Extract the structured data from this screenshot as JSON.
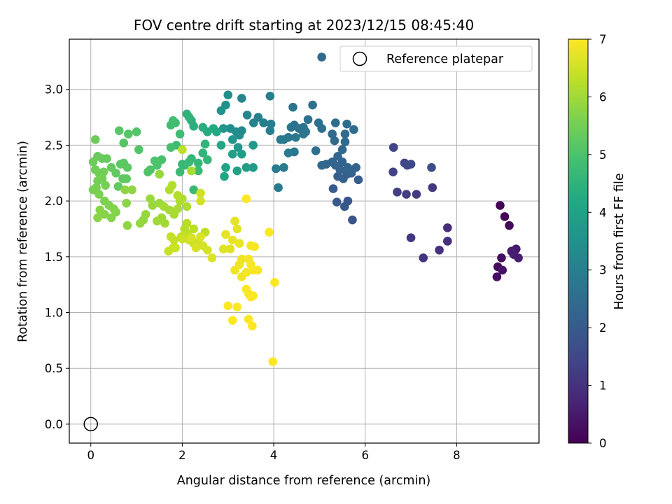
{
  "chart_data": {
    "type": "scatter",
    "title": "FOV centre drift starting at 2023/12/15 08:45:40",
    "xlabel": "Angular distance from reference (arcmin)",
    "ylabel": "Rotation from reference (arcmin)",
    "xlim": [
      -0.47,
      9.8
    ],
    "ylim": [
      -0.17,
      3.45
    ],
    "grid": true,
    "x_ticks": [
      0,
      2,
      4,
      6,
      8
    ],
    "y_ticks": [
      0.0,
      0.5,
      1.0,
      1.5,
      2.0,
      2.5,
      3.0
    ],
    "x_tick_labels": [
      "0",
      "2",
      "4",
      "6",
      "8"
    ],
    "y_tick_labels": [
      "0.0",
      "0.5",
      "1.0",
      "1.5",
      "2.0",
      "2.5",
      "3.0"
    ],
    "legend": {
      "placement": "top-right",
      "entries": [
        "Reference platepar"
      ]
    },
    "reference_point": {
      "x": 0,
      "y": 0,
      "label": "Reference platepar"
    },
    "colorbar": {
      "label": "Hours from first FF file",
      "colormap": "viridis",
      "range": [
        0,
        7
      ],
      "ticks": [
        0,
        1,
        2,
        3,
        4,
        5,
        6,
        7
      ],
      "tick_labels": [
        "0",
        "1",
        "2",
        "3",
        "4",
        "5",
        "6",
        "7"
      ]
    },
    "points": [
      [
        8.95,
        1.96,
        0.05
      ],
      [
        9.05,
        1.86,
        0.1
      ],
      [
        9.15,
        1.78,
        0.15
      ],
      [
        8.9,
        1.41,
        0.2
      ],
      [
        8.98,
        1.49,
        0.25
      ],
      [
        8.88,
        1.32,
        0.3
      ],
      [
        9.0,
        1.38,
        0.35
      ],
      [
        9.2,
        1.55,
        0.4
      ],
      [
        9.3,
        1.57,
        0.45
      ],
      [
        9.25,
        1.52,
        0.5
      ],
      [
        9.35,
        1.49,
        0.55
      ],
      [
        9.22,
        1.54,
        0.6
      ],
      [
        7.8,
        1.76,
        0.9
      ],
      [
        7.8,
        1.64,
        0.95
      ],
      [
        7.62,
        1.56,
        1.0
      ],
      [
        7.27,
        1.49,
        1.05
      ],
      [
        7.0,
        1.67,
        1.1
      ],
      [
        7.47,
        2.12,
        1.15
      ],
      [
        7.12,
        2.06,
        1.2
      ],
      [
        6.9,
        2.06,
        1.25
      ],
      [
        6.7,
        2.08,
        1.3
      ],
      [
        6.61,
        2.26,
        1.35
      ],
      [
        6.62,
        2.48,
        1.4
      ],
      [
        6.86,
        2.34,
        1.45
      ],
      [
        6.92,
        2.32,
        1.5
      ],
      [
        7.0,
        2.33,
        1.55
      ],
      [
        7.45,
        2.3,
        1.6
      ],
      [
        5.72,
        1.83,
        1.8
      ],
      [
        5.62,
        2.0,
        1.85
      ],
      [
        5.55,
        1.95,
        1.9
      ],
      [
        5.38,
        1.99,
        1.95
      ],
      [
        5.3,
        2.11,
        2.0
      ],
      [
        5.85,
        2.19,
        2.05
      ],
      [
        5.52,
        2.2,
        2.1
      ],
      [
        5.4,
        2.22,
        2.12
      ],
      [
        5.6,
        2.24,
        2.14
      ],
      [
        5.45,
        2.28,
        2.16
      ],
      [
        5.7,
        2.25,
        2.18
      ],
      [
        5.8,
        2.3,
        2.2
      ],
      [
        5.5,
        2.35,
        2.22
      ],
      [
        5.35,
        2.32,
        2.24
      ],
      [
        5.62,
        2.3,
        2.26
      ],
      [
        5.28,
        2.35,
        2.28
      ],
      [
        5.4,
        2.4,
        2.3
      ],
      [
        5.15,
        2.33,
        2.32
      ],
      [
        5.05,
        2.32,
        2.34
      ],
      [
        5.5,
        2.46,
        2.36
      ],
      [
        5.33,
        2.54,
        2.38
      ],
      [
        5.56,
        2.53,
        2.4
      ],
      [
        5.28,
        2.6,
        2.42
      ],
      [
        5.56,
        2.6,
        2.44
      ],
      [
        5.75,
        2.64,
        2.46
      ],
      [
        5.6,
        2.69,
        2.48
      ],
      [
        5.35,
        2.7,
        2.5
      ],
      [
        5.05,
        2.65,
        2.52
      ],
      [
        4.98,
        2.7,
        2.54
      ],
      [
        4.92,
        2.45,
        2.56
      ],
      [
        4.85,
        2.86,
        2.58
      ],
      [
        4.75,
        2.73,
        2.6
      ],
      [
        4.65,
        2.66,
        2.62
      ],
      [
        4.55,
        2.65,
        2.64
      ],
      [
        4.45,
        2.68,
        2.66
      ],
      [
        4.38,
        2.66,
        2.68
      ],
      [
        4.42,
        2.84,
        2.7
      ],
      [
        4.7,
        2.62,
        2.72
      ],
      [
        4.65,
        2.6,
        2.74
      ],
      [
        4.48,
        2.57,
        2.76
      ],
      [
        4.32,
        2.57,
        2.78
      ],
      [
        4.22,
        2.55,
        2.8
      ],
      [
        4.15,
        2.55,
        2.82
      ],
      [
        4.45,
        2.44,
        2.84
      ],
      [
        4.32,
        2.43,
        2.86
      ],
      [
        4.22,
        2.3,
        2.88
      ],
      [
        4.05,
        2.29,
        2.9
      ],
      [
        4.1,
        2.12,
        2.92
      ],
      [
        3.92,
        2.63,
        2.94
      ],
      [
        3.94,
        2.69,
        2.96
      ],
      [
        3.92,
        2.94,
        2.98
      ],
      [
        3.78,
        2.7,
        3.0
      ],
      [
        3.66,
        2.75,
        3.05
      ],
      [
        3.56,
        2.7,
        3.1
      ],
      [
        3.42,
        2.77,
        3.15
      ],
      [
        3.3,
        2.92,
        3.2
      ],
      [
        3.3,
        2.63,
        3.25
      ],
      [
        3.25,
        2.59,
        3.3
      ],
      [
        3.18,
        2.62,
        3.35
      ],
      [
        3.05,
        2.65,
        3.4
      ],
      [
        3.0,
        2.95,
        3.45
      ],
      [
        2.95,
        2.86,
        3.5
      ],
      [
        2.85,
        2.81,
        3.55
      ],
      [
        2.9,
        2.65,
        3.6
      ],
      [
        3.1,
        2.55,
        3.65
      ],
      [
        3.22,
        2.48,
        3.7
      ],
      [
        3.55,
        2.5,
        3.75
      ],
      [
        3.55,
        2.3,
        3.8
      ],
      [
        3.4,
        2.3,
        3.85
      ],
      [
        3.3,
        2.42,
        3.9
      ],
      [
        3.1,
        2.42,
        3.95
      ],
      [
        3.2,
        2.27,
        4.0
      ],
      [
        2.95,
        2.3,
        4.05
      ],
      [
        2.92,
        2.22,
        4.1
      ],
      [
        2.85,
        2.5,
        4.15
      ],
      [
        2.75,
        2.62,
        4.2
      ],
      [
        2.68,
        2.65,
        4.25
      ],
      [
        2.55,
        2.62,
        4.3
      ],
      [
        2.45,
        2.66,
        4.35
      ],
      [
        2.25,
        2.67,
        4.4
      ],
      [
        2.2,
        2.72,
        4.45
      ],
      [
        2.1,
        2.78,
        4.5
      ],
      [
        2.15,
        2.75,
        4.52
      ],
      [
        2.5,
        2.51,
        4.55
      ],
      [
        2.45,
        2.43,
        4.58
      ],
      [
        2.55,
        2.37,
        4.6
      ],
      [
        2.35,
        2.34,
        4.62
      ],
      [
        2.2,
        2.38,
        4.64
      ],
      [
        2.15,
        2.35,
        4.66
      ],
      [
        2.05,
        2.32,
        4.68
      ],
      [
        2.0,
        2.33,
        4.7
      ],
      [
        2.35,
        2.27,
        4.72
      ],
      [
        2.25,
        2.1,
        4.74
      ],
      [
        1.95,
        2.26,
        4.76
      ],
      [
        1.87,
        2.5,
        4.78
      ],
      [
        1.95,
        2.6,
        4.8
      ],
      [
        1.85,
        2.7,
        4.82
      ],
      [
        1.75,
        2.68,
        4.84
      ],
      [
        1.8,
        2.72,
        4.86
      ],
      [
        1.75,
        2.48,
        4.9
      ],
      [
        1.55,
        2.37,
        4.95
      ],
      [
        1.45,
        2.32,
        5.0
      ],
      [
        1.4,
        2.36,
        5.02
      ],
      [
        1.3,
        2.28,
        5.04
      ],
      [
        1.25,
        2.26,
        5.06
      ],
      [
        1.05,
        2.46,
        5.08
      ],
      [
        1.0,
        2.62,
        5.1
      ],
      [
        0.82,
        2.6,
        5.12
      ],
      [
        0.72,
        2.52,
        5.14
      ],
      [
        0.62,
        2.63,
        5.16
      ],
      [
        0.72,
        2.34,
        5.18
      ],
      [
        0.65,
        2.33,
        5.2
      ],
      [
        0.8,
        2.3,
        5.22
      ],
      [
        0.78,
        2.2,
        5.24
      ],
      [
        0.7,
        2.2,
        5.26
      ],
      [
        0.6,
        2.13,
        5.28
      ],
      [
        0.55,
        2.25,
        5.3
      ],
      [
        0.45,
        2.3,
        5.32
      ],
      [
        0.35,
        2.38,
        5.34
      ],
      [
        0.25,
        2.38,
        5.36
      ],
      [
        0.15,
        2.4,
        5.38
      ],
      [
        0.1,
        2.55,
        5.4
      ],
      [
        0.05,
        2.35,
        5.42
      ],
      [
        0.1,
        2.28,
        5.44
      ],
      [
        0.18,
        2.25,
        5.46
      ],
      [
        0.28,
        2.26,
        5.48
      ],
      [
        0.15,
        2.18,
        5.5
      ],
      [
        0.25,
        2.2,
        5.52
      ],
      [
        0.32,
        2.14,
        5.54
      ],
      [
        0.12,
        2.12,
        5.56
      ],
      [
        0.05,
        2.1,
        5.58
      ],
      [
        0.18,
        2.06,
        5.6
      ],
      [
        0.3,
        2.0,
        5.62
      ],
      [
        0.4,
        1.96,
        5.64
      ],
      [
        0.5,
        1.93,
        5.66
      ],
      [
        0.55,
        1.9,
        5.68
      ],
      [
        0.45,
        1.85,
        5.7
      ],
      [
        0.3,
        1.88,
        5.72
      ],
      [
        0.2,
        1.92,
        5.74
      ],
      [
        0.15,
        1.85,
        5.76
      ],
      [
        0.78,
        1.98,
        5.78
      ],
      [
        0.8,
        1.78,
        5.8
      ],
      [
        0.75,
        2.1,
        5.82
      ],
      [
        0.9,
        2.1,
        5.84
      ],
      [
        1.15,
        1.83,
        5.86
      ],
      [
        1.08,
        1.8,
        5.88
      ],
      [
        1.2,
        1.88,
        5.9
      ],
      [
        1.35,
        1.96,
        5.92
      ],
      [
        1.3,
        2.02,
        5.94
      ],
      [
        1.5,
        1.98,
        5.96
      ],
      [
        1.55,
        1.85,
        5.98
      ],
      [
        1.45,
        1.82,
        6.0
      ],
      [
        1.62,
        1.8,
        6.02
      ],
      [
        1.6,
        1.95,
        6.04
      ],
      [
        1.72,
        1.92,
        6.06
      ],
      [
        1.82,
        1.88,
        6.08
      ],
      [
        1.9,
        1.93,
        6.1
      ],
      [
        2.0,
        2.02,
        6.12
      ],
      [
        2.1,
        1.95,
        6.14
      ],
      [
        1.95,
        2.0,
        6.16
      ],
      [
        1.72,
        2.1,
        6.18
      ],
      [
        1.78,
        2.14,
        6.2
      ],
      [
        1.9,
        2.05,
        6.22
      ],
      [
        2.05,
        1.75,
        6.24
      ],
      [
        2.1,
        1.8,
        6.26
      ],
      [
        2.25,
        1.75,
        6.28
      ],
      [
        2.5,
        1.72,
        6.3
      ],
      [
        2.12,
        1.7,
        6.32
      ],
      [
        1.98,
        1.68,
        6.34
      ],
      [
        1.82,
        1.65,
        6.36
      ],
      [
        1.75,
        1.68,
        6.38
      ],
      [
        1.7,
        1.55,
        6.4
      ],
      [
        1.8,
        1.58,
        6.42
      ],
      [
        1.85,
        1.58,
        6.44
      ],
      [
        2.0,
        1.66,
        6.46
      ],
      [
        2.15,
        1.65,
        6.48
      ],
      [
        2.25,
        1.62,
        6.5
      ],
      [
        2.35,
        1.63,
        6.52
      ],
      [
        2.45,
        1.6,
        6.54
      ],
      [
        2.55,
        1.56,
        6.56
      ],
      [
        2.3,
        1.58,
        6.58
      ],
      [
        2.2,
        1.67,
        6.6
      ],
      [
        2.4,
        1.68,
        6.62
      ],
      [
        2.65,
        1.49,
        6.64
      ],
      [
        2.9,
        1.57,
        6.66
      ],
      [
        3.05,
        1.57,
        6.68
      ],
      [
        3.15,
        1.82,
        6.7
      ],
      [
        3.2,
        1.75,
        6.72
      ],
      [
        2.95,
        1.7,
        6.74
      ],
      [
        3.1,
        1.65,
        6.76
      ],
      [
        3.25,
        1.62,
        6.78
      ],
      [
        3.3,
        1.48,
        6.8
      ],
      [
        3.25,
        1.43,
        6.82
      ],
      [
        3.15,
        1.38,
        6.84
      ],
      [
        3.3,
        1.32,
        6.86
      ],
      [
        3.4,
        1.36,
        6.88
      ],
      [
        3.45,
        1.48,
        6.9
      ],
      [
        3.5,
        1.6,
        6.91
      ],
      [
        3.58,
        1.59,
        6.92
      ],
      [
        3.5,
        1.43,
        6.93
      ],
      [
        3.55,
        1.38,
        6.94
      ],
      [
        3.65,
        1.38,
        6.95
      ],
      [
        3.4,
        1.21,
        6.96
      ],
      [
        3.45,
        1.17,
        6.965
      ],
      [
        3.55,
        1.15,
        6.97
      ],
      [
        3.5,
        1.14,
        6.975
      ],
      [
        3.2,
        1.05,
        6.98
      ],
      [
        3.0,
        1.06,
        6.985
      ],
      [
        3.1,
        0.93,
        6.99
      ],
      [
        3.45,
        0.94,
        6.992
      ],
      [
        3.53,
        0.88,
        6.995
      ],
      [
        3.4,
        2.02,
        6.98
      ],
      [
        3.9,
        1.72,
        6.97
      ],
      [
        3.98,
        0.56,
        7.0
      ],
      [
        4.02,
        1.27,
        7.0
      ],
      [
        2.4,
        2.07,
        6.5
      ],
      [
        2.4,
        2.0,
        6.55
      ],
      [
        1.5,
        2.24,
        5.9
      ],
      [
        2.2,
        2.27,
        6.1
      ],
      [
        2.0,
        2.46,
        6.3
      ],
      [
        5.05,
        3.29,
        2.4
      ]
    ]
  }
}
